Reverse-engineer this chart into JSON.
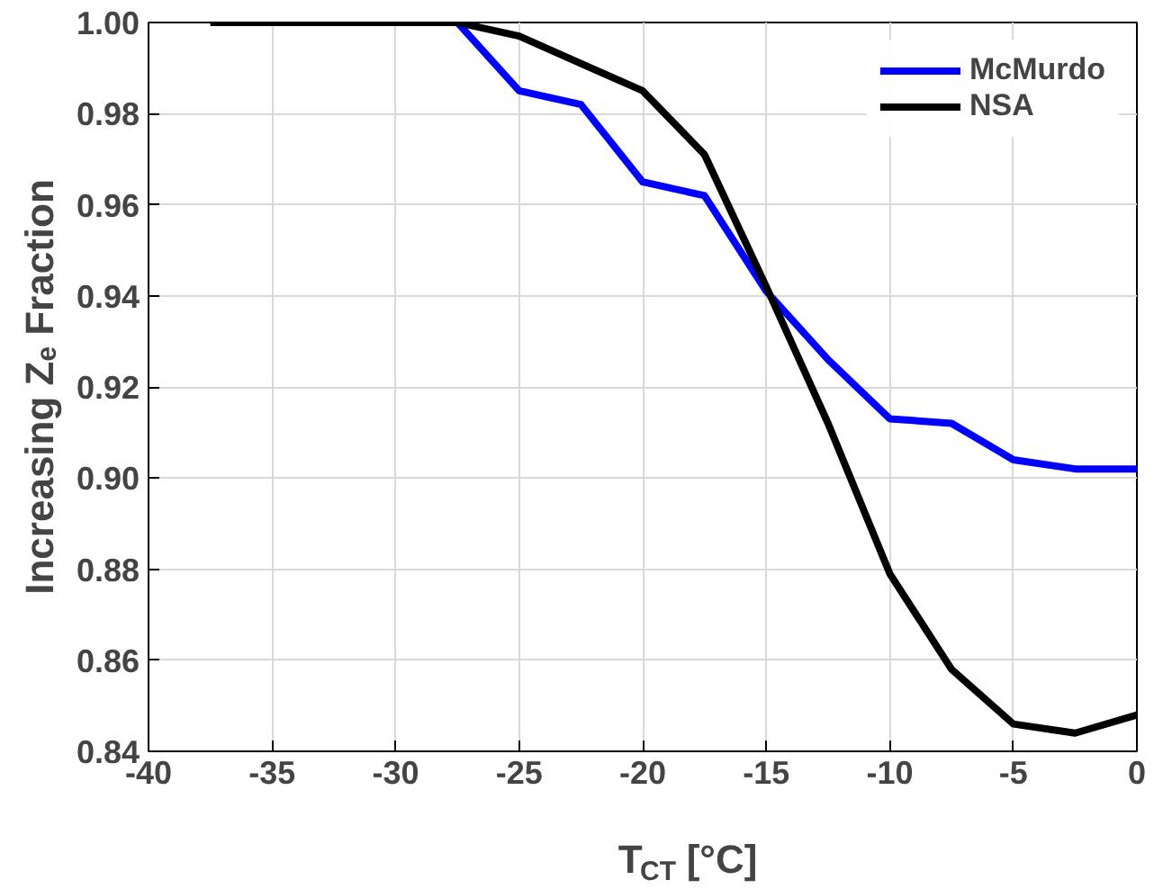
{
  "chart_data": {
    "type": "line",
    "xlabel": "T$_{CT}$ [°C]",
    "ylabel": "Increasing Zₑ Fraction",
    "x": [
      -37.5,
      -35,
      -32.5,
      -30,
      -27.5,
      -25,
      -22.5,
      -20,
      -17.5,
      -15,
      -12.5,
      -10,
      -7.5,
      -5,
      -2.5,
      0
    ],
    "series": [
      {
        "name": "McMurdo",
        "color": "#0000ff",
        "values": [
          null,
          null,
          null,
          null,
          1.0,
          0.985,
          0.982,
          0.965,
          0.962,
          0.941,
          0.926,
          0.913,
          0.912,
          0.904,
          0.902,
          0.902
        ]
      },
      {
        "name": "NSA",
        "color": "#000000",
        "values": [
          1.0,
          1.0,
          1.0,
          1.0,
          1.0,
          0.997,
          0.991,
          0.985,
          0.971,
          0.942,
          0.912,
          0.879,
          0.858,
          0.846,
          0.844,
          0.848
        ]
      }
    ],
    "xlim": [
      -40,
      0
    ],
    "xticks": [
      -40,
      -35,
      -30,
      -25,
      -20,
      -15,
      -10,
      -5,
      0
    ],
    "ylim": [
      0.84,
      1.0
    ],
    "yticks": [
      {
        "value": 0.84,
        "label": "0.84"
      },
      {
        "value": 0.86,
        "label": "0.86"
      },
      {
        "value": 0.88,
        "label": "0.88"
      },
      {
        "value": 0.9,
        "label": "0.90"
      },
      {
        "value": 0.92,
        "label": "0.92"
      },
      {
        "value": 0.94,
        "label": "0.94"
      },
      {
        "value": 0.96,
        "label": "0.96"
      },
      {
        "value": 0.98,
        "label": "0.98"
      },
      {
        "value": 1.0,
        "label": "1.00"
      }
    ],
    "grid": true,
    "legend": "top right",
    "line_style": "solid"
  }
}
